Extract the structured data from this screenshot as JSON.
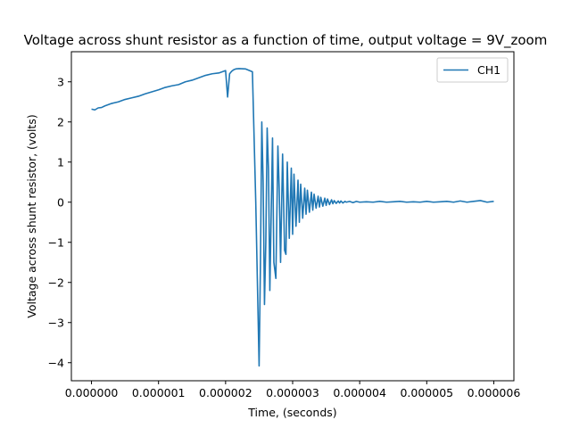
{
  "chart_data": {
    "type": "line",
    "title": "Voltage across shunt resistor as a function of time, output voltage = 9V_zoom",
    "xlabel": "Time, (seconds)",
    "ylabel": "Voltage across shunt resistor, (volts)",
    "xlim": [
      -3e-07,
      6.3e-06
    ],
    "ylim": [
      -4.45,
      3.75
    ],
    "x_ticks": [
      0,
      1e-06,
      2e-06,
      3e-06,
      4e-06,
      5e-06,
      6e-06
    ],
    "x_tick_labels": [
      "0.000000",
      "0.000001",
      "0.000002",
      "0.000003",
      "0.000004",
      "0.000005",
      "0.000006"
    ],
    "y_ticks": [
      -4,
      -3,
      -2,
      -1,
      0,
      1,
      2,
      3
    ],
    "y_tick_labels": [
      "−4",
      "−3",
      "−2",
      "−1",
      "0",
      "1",
      "2",
      "3"
    ],
    "grid": false,
    "legend_position": "top-right",
    "series": [
      {
        "name": "CH1",
        "color": "#1f77b4",
        "x": [
          0,
          5e-08,
          1e-07,
          1.5e-07,
          2e-07,
          3e-07,
          4e-07,
          5e-07,
          6e-07,
          7e-07,
          8e-07,
          9e-07,
          1e-06,
          1.1e-06,
          1.2e-06,
          1.3e-06,
          1.4e-06,
          1.5e-06,
          1.6e-06,
          1.7e-06,
          1.8e-06,
          1.9e-06,
          2e-06,
          2.03e-06,
          2.06e-06,
          2.09e-06,
          2.12e-06,
          2.15e-06,
          2.2e-06,
          2.3e-06,
          2.4e-06,
          2.45e-06,
          2.5e-06,
          2.52e-06,
          2.54e-06,
          2.56e-06,
          2.58e-06,
          2.6e-06,
          2.62e-06,
          2.64e-06,
          2.66e-06,
          2.7e-06,
          2.72e-06,
          2.75e-06,
          2.78e-06,
          2.8e-06,
          2.82e-06,
          2.85e-06,
          2.88e-06,
          2.9e-06,
          2.92e-06,
          2.95e-06,
          2.98e-06,
          3e-06,
          3.02e-06,
          3.05e-06,
          3.08e-06,
          3.1e-06,
          3.12e-06,
          3.15e-06,
          3.18e-06,
          3.2e-06,
          3.22e-06,
          3.25e-06,
          3.28e-06,
          3.3e-06,
          3.32e-06,
          3.35e-06,
          3.38e-06,
          3.4e-06,
          3.42e-06,
          3.45e-06,
          3.48e-06,
          3.5e-06,
          3.52e-06,
          3.55e-06,
          3.58e-06,
          3.6e-06,
          3.62e-06,
          3.65e-06,
          3.68e-06,
          3.7e-06,
          3.72e-06,
          3.75e-06,
          3.78e-06,
          3.8e-06,
          3.85e-06,
          3.9e-06,
          3.95e-06,
          4e-06,
          4.1e-06,
          4.2e-06,
          4.3e-06,
          4.4e-06,
          4.5e-06,
          4.6e-06,
          4.7e-06,
          4.8e-06,
          4.9e-06,
          5e-06,
          5.1e-06,
          5.2e-06,
          5.3e-06,
          5.4e-06,
          5.5e-06,
          5.6e-06,
          5.7e-06,
          5.8e-06,
          5.9e-06,
          6e-06
        ],
        "y": [
          2.32,
          2.3,
          2.35,
          2.36,
          2.4,
          2.46,
          2.5,
          2.56,
          2.6,
          2.64,
          2.7,
          2.75,
          2.8,
          2.86,
          2.9,
          2.93,
          3.0,
          3.04,
          3.1,
          3.16,
          3.2,
          3.22,
          3.28,
          2.62,
          3.2,
          3.26,
          3.3,
          3.32,
          3.33,
          3.32,
          3.25,
          0.0,
          -4.08,
          -1.5,
          2.0,
          0.5,
          -2.55,
          -1.0,
          1.85,
          0.8,
          -2.2,
          1.6,
          -1.5,
          -1.9,
          1.4,
          0.3,
          -1.5,
          1.2,
          -1.2,
          -1.3,
          1.0,
          -0.9,
          0.85,
          -0.8,
          0.7,
          -0.6,
          0.55,
          -0.5,
          0.45,
          -0.4,
          0.35,
          -0.3,
          0.3,
          -0.25,
          0.25,
          -0.2,
          0.2,
          -0.15,
          0.15,
          -0.12,
          0.12,
          -0.1,
          0.1,
          -0.08,
          0.08,
          -0.06,
          0.06,
          -0.04,
          0.04,
          -0.03,
          0.03,
          -0.02,
          0.03,
          -0.02,
          0.02,
          0.0,
          0.02,
          -0.01,
          0.02,
          0.0,
          0.01,
          0.0,
          0.02,
          0.0,
          0.01,
          0.02,
          0.0,
          0.01,
          0.0,
          0.02,
          0.0,
          0.01,
          0.02,
          0.0,
          0.03,
          0.0,
          0.02,
          0.04,
          0.0,
          0.02
        ]
      }
    ]
  }
}
